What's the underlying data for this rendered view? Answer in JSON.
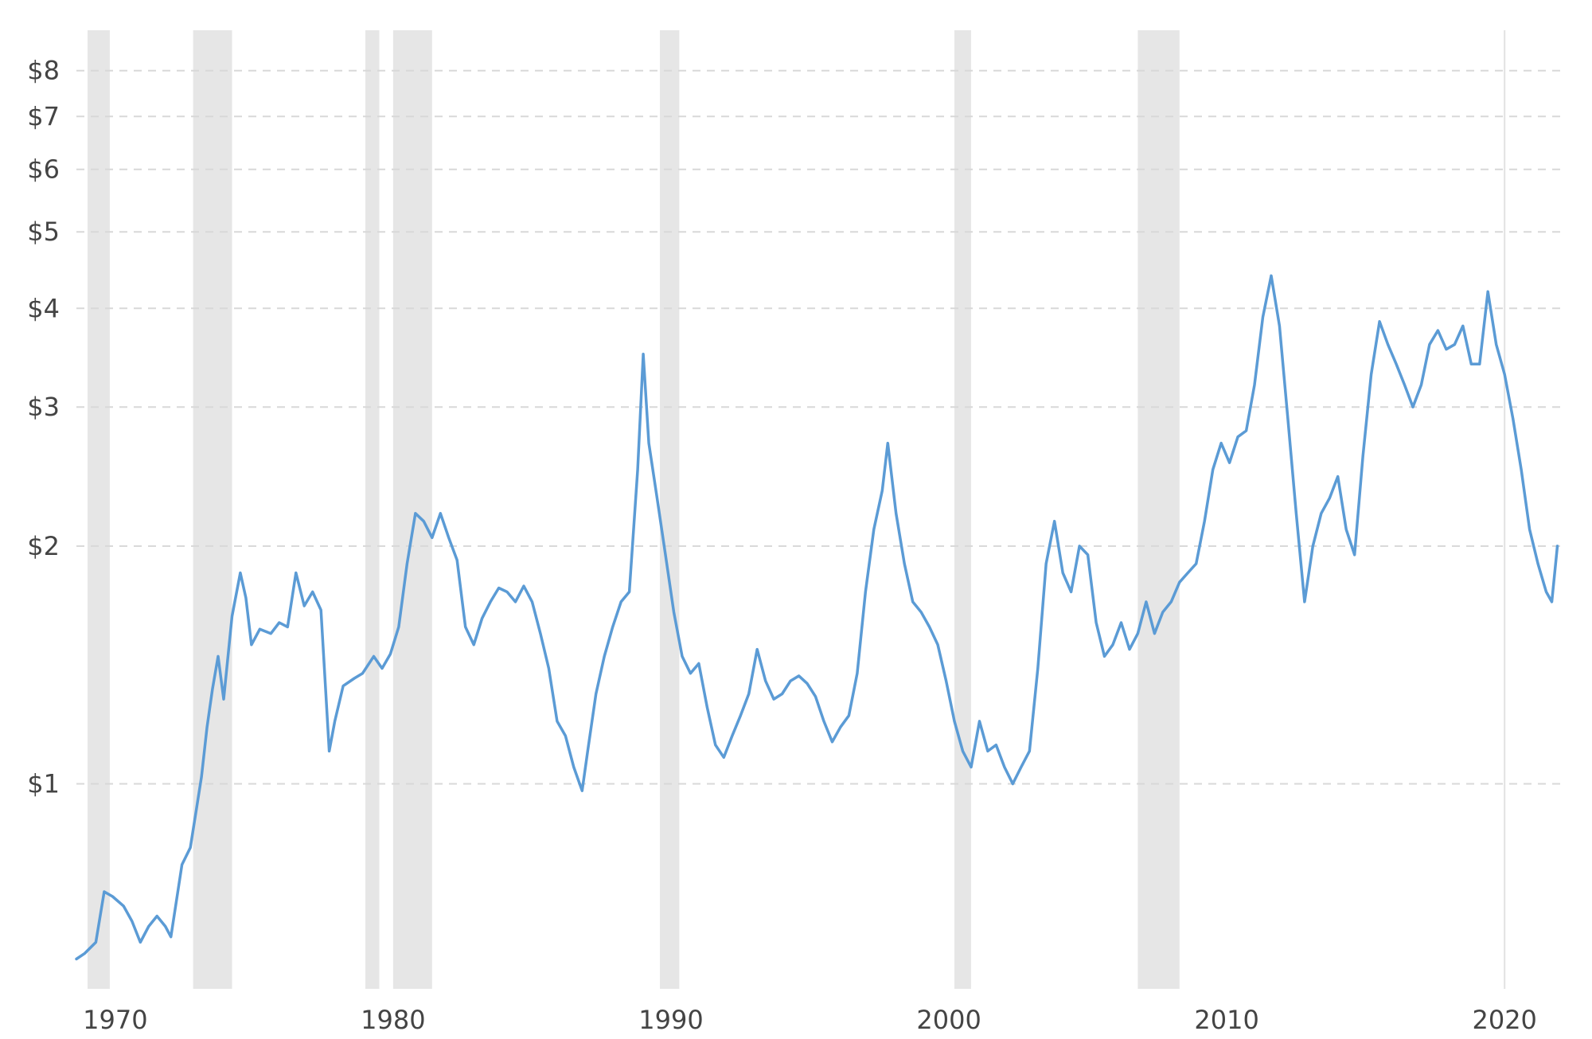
{
  "chart_data": {
    "type": "line",
    "title": "",
    "xlabel": "",
    "ylabel": "",
    "y_scale": "log",
    "xlim": [
      1968.6,
      2022.0
    ],
    "ylim": [
      0.55,
      9.0
    ],
    "x_ticks": [
      {
        "value": 1970,
        "label": "1970"
      },
      {
        "value": 1980,
        "label": "1980"
      },
      {
        "value": 1990,
        "label": "1990"
      },
      {
        "value": 2000,
        "label": "2000"
      },
      {
        "value": 2010,
        "label": "2010"
      },
      {
        "value": 2020,
        "label": "2020"
      }
    ],
    "y_ticks": [
      {
        "value": 1,
        "label": "$1"
      },
      {
        "value": 2,
        "label": "$2"
      },
      {
        "value": 3,
        "label": "$3"
      },
      {
        "value": 4,
        "label": "$4"
      },
      {
        "value": 5,
        "label": "$5"
      },
      {
        "value": 6,
        "label": "$6"
      },
      {
        "value": 7,
        "label": "$7"
      },
      {
        "value": 8,
        "label": "$8"
      }
    ],
    "grid": {
      "horizontal": true,
      "horizontal_style": "dashed",
      "vertical": false
    },
    "legend": "none",
    "colors": {
      "line": "#5b9bd5",
      "recession_band": "#e6e6e6",
      "grid": "#d8d8d8",
      "reference_line": "#e2e2e2",
      "tick_text": "#444444"
    },
    "reference_lines": [
      2020.0
    ],
    "shaded_periods": [
      [
        1969.0,
        1969.8
      ],
      [
        1972.8,
        1974.2
      ],
      [
        1979.0,
        1979.5
      ],
      [
        1980.0,
        1981.4
      ],
      [
        1989.6,
        1990.3
      ],
      [
        2000.2,
        2000.8
      ],
      [
        2006.8,
        2008.3
      ]
    ],
    "series": [
      {
        "values": [
          [
            1968.6,
            0.6
          ],
          [
            1968.9,
            0.61
          ],
          [
            1969.3,
            0.63
          ],
          [
            1969.6,
            0.73
          ],
          [
            1969.9,
            0.72
          ],
          [
            1970.3,
            0.7
          ],
          [
            1970.6,
            0.67
          ],
          [
            1970.9,
            0.63
          ],
          [
            1971.2,
            0.66
          ],
          [
            1971.5,
            0.68
          ],
          [
            1971.8,
            0.66
          ],
          [
            1972.0,
            0.64
          ],
          [
            1972.4,
            0.79
          ],
          [
            1972.7,
            0.83
          ],
          [
            1972.9,
            0.92
          ],
          [
            1973.1,
            1.02
          ],
          [
            1973.3,
            1.18
          ],
          [
            1973.5,
            1.32
          ],
          [
            1973.7,
            1.45
          ],
          [
            1973.9,
            1.28
          ],
          [
            1974.2,
            1.63
          ],
          [
            1974.5,
            1.85
          ],
          [
            1974.7,
            1.72
          ],
          [
            1974.9,
            1.5
          ],
          [
            1975.2,
            1.57
          ],
          [
            1975.6,
            1.55
          ],
          [
            1975.9,
            1.6
          ],
          [
            1976.2,
            1.58
          ],
          [
            1976.5,
            1.85
          ],
          [
            1976.8,
            1.68
          ],
          [
            1977.1,
            1.75
          ],
          [
            1977.4,
            1.66
          ],
          [
            1977.7,
            1.1
          ],
          [
            1977.9,
            1.2
          ],
          [
            1978.2,
            1.33
          ],
          [
            1978.6,
            1.36
          ],
          [
            1978.9,
            1.38
          ],
          [
            1979.3,
            1.45
          ],
          [
            1979.6,
            1.4
          ],
          [
            1979.9,
            1.46
          ],
          [
            1980.2,
            1.58
          ],
          [
            1980.5,
            1.9
          ],
          [
            1980.8,
            2.2
          ],
          [
            1981.1,
            2.15
          ],
          [
            1981.4,
            2.05
          ],
          [
            1981.7,
            2.2
          ],
          [
            1982.0,
            2.05
          ],
          [
            1982.3,
            1.92
          ],
          [
            1982.6,
            1.58
          ],
          [
            1982.9,
            1.5
          ],
          [
            1983.2,
            1.62
          ],
          [
            1983.5,
            1.7
          ],
          [
            1983.8,
            1.77
          ],
          [
            1984.1,
            1.75
          ],
          [
            1984.4,
            1.7
          ],
          [
            1984.7,
            1.78
          ],
          [
            1985.0,
            1.7
          ],
          [
            1985.3,
            1.55
          ],
          [
            1985.6,
            1.4
          ],
          [
            1985.9,
            1.2
          ],
          [
            1986.2,
            1.15
          ],
          [
            1986.5,
            1.05
          ],
          [
            1986.8,
            0.98
          ],
          [
            1987.0,
            1.1
          ],
          [
            1987.3,
            1.3
          ],
          [
            1987.6,
            1.45
          ],
          [
            1987.9,
            1.58
          ],
          [
            1988.2,
            1.7
          ],
          [
            1988.5,
            1.75
          ],
          [
            1988.8,
            2.5
          ],
          [
            1989.0,
            3.5
          ],
          [
            1989.2,
            2.7
          ],
          [
            1989.5,
            2.3
          ],
          [
            1989.8,
            1.95
          ],
          [
            1990.1,
            1.65
          ],
          [
            1990.4,
            1.45
          ],
          [
            1990.7,
            1.38
          ],
          [
            1991.0,
            1.42
          ],
          [
            1991.3,
            1.25
          ],
          [
            1991.6,
            1.12
          ],
          [
            1991.9,
            1.08
          ],
          [
            1992.2,
            1.15
          ],
          [
            1992.5,
            1.22
          ],
          [
            1992.8,
            1.3
          ],
          [
            1993.1,
            1.48
          ],
          [
            1993.4,
            1.35
          ],
          [
            1993.7,
            1.28
          ],
          [
            1994.0,
            1.3
          ],
          [
            1994.3,
            1.35
          ],
          [
            1994.6,
            1.37
          ],
          [
            1994.9,
            1.34
          ],
          [
            1995.2,
            1.29
          ],
          [
            1995.5,
            1.2
          ],
          [
            1995.8,
            1.13
          ],
          [
            1996.1,
            1.18
          ],
          [
            1996.4,
            1.22
          ],
          [
            1996.7,
            1.38
          ],
          [
            1997.0,
            1.75
          ],
          [
            1997.3,
            2.1
          ],
          [
            1997.6,
            2.35
          ],
          [
            1997.8,
            2.7
          ],
          [
            1998.1,
            2.2
          ],
          [
            1998.4,
            1.9
          ],
          [
            1998.7,
            1.7
          ],
          [
            1999.0,
            1.65
          ],
          [
            1999.3,
            1.58
          ],
          [
            1999.6,
            1.5
          ],
          [
            1999.9,
            1.35
          ],
          [
            2000.2,
            1.2
          ],
          [
            2000.5,
            1.1
          ],
          [
            2000.8,
            1.05
          ],
          [
            2001.1,
            1.2
          ],
          [
            2001.4,
            1.1
          ],
          [
            2001.7,
            1.12
          ],
          [
            2002.0,
            1.05
          ],
          [
            2002.3,
            1.0
          ],
          [
            2002.6,
            1.05
          ],
          [
            2002.9,
            1.1
          ],
          [
            2003.2,
            1.4
          ],
          [
            2003.5,
            1.9
          ],
          [
            2003.8,
            2.15
          ],
          [
            2004.1,
            1.85
          ],
          [
            2004.4,
            1.75
          ],
          [
            2004.7,
            2.0
          ],
          [
            2005.0,
            1.95
          ],
          [
            2005.3,
            1.6
          ],
          [
            2005.6,
            1.45
          ],
          [
            2005.9,
            1.5
          ],
          [
            2006.2,
            1.6
          ],
          [
            2006.5,
            1.48
          ],
          [
            2006.8,
            1.55
          ],
          [
            2007.1,
            1.7
          ],
          [
            2007.4,
            1.55
          ],
          [
            2007.7,
            1.65
          ],
          [
            2008.0,
            1.7
          ],
          [
            2008.3,
            1.8
          ],
          [
            2008.6,
            1.85
          ],
          [
            2008.9,
            1.9
          ],
          [
            2009.2,
            2.15
          ],
          [
            2009.5,
            2.5
          ],
          [
            2009.8,
            2.7
          ],
          [
            2010.1,
            2.55
          ],
          [
            2010.4,
            2.75
          ],
          [
            2010.7,
            2.8
          ],
          [
            2011.0,
            3.2
          ],
          [
            2011.3,
            3.9
          ],
          [
            2011.6,
            4.4
          ],
          [
            2011.9,
            3.8
          ],
          [
            2012.2,
            2.9
          ],
          [
            2012.5,
            2.2
          ],
          [
            2012.8,
            1.7
          ],
          [
            2013.1,
            2.0
          ],
          [
            2013.4,
            2.2
          ],
          [
            2013.7,
            2.3
          ],
          [
            2014.0,
            2.45
          ],
          [
            2014.3,
            2.1
          ],
          [
            2014.6,
            1.95
          ],
          [
            2014.9,
            2.6
          ],
          [
            2015.2,
            3.3
          ],
          [
            2015.5,
            3.85
          ],
          [
            2015.8,
            3.6
          ],
          [
            2016.1,
            3.4
          ],
          [
            2016.4,
            3.2
          ],
          [
            2016.7,
            3.0
          ],
          [
            2017.0,
            3.2
          ],
          [
            2017.3,
            3.6
          ],
          [
            2017.6,
            3.75
          ],
          [
            2017.9,
            3.55
          ],
          [
            2018.2,
            3.6
          ],
          [
            2018.5,
            3.8
          ],
          [
            2018.8,
            3.4
          ],
          [
            2019.1,
            3.4
          ],
          [
            2019.4,
            4.2
          ],
          [
            2019.7,
            3.6
          ],
          [
            2020.0,
            3.3
          ],
          [
            2020.3,
            2.9
          ],
          [
            2020.6,
            2.5
          ],
          [
            2020.9,
            2.1
          ],
          [
            2021.2,
            1.9
          ],
          [
            2021.5,
            1.75
          ],
          [
            2021.7,
            1.7
          ],
          [
            2021.9,
            2.0
          ]
        ]
      }
    ]
  }
}
